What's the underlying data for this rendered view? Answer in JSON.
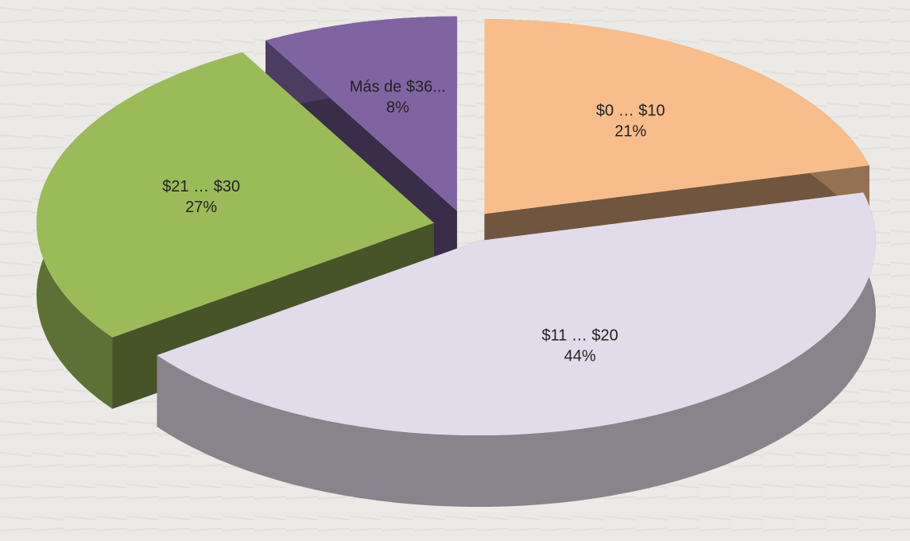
{
  "chart_data": {
    "type": "pie3d",
    "categories": [
      "$0 … $10",
      "$11 … $20",
      "$21 … $30",
      "Más de $36..."
    ],
    "values": [
      21,
      44,
      27,
      8
    ],
    "value_labels": [
      "21%",
      "44%",
      "27%",
      "8%"
    ],
    "colors": [
      "#f8bd8b",
      "#e2dcea",
      "#9bbb59",
      "#8064a2"
    ]
  }
}
